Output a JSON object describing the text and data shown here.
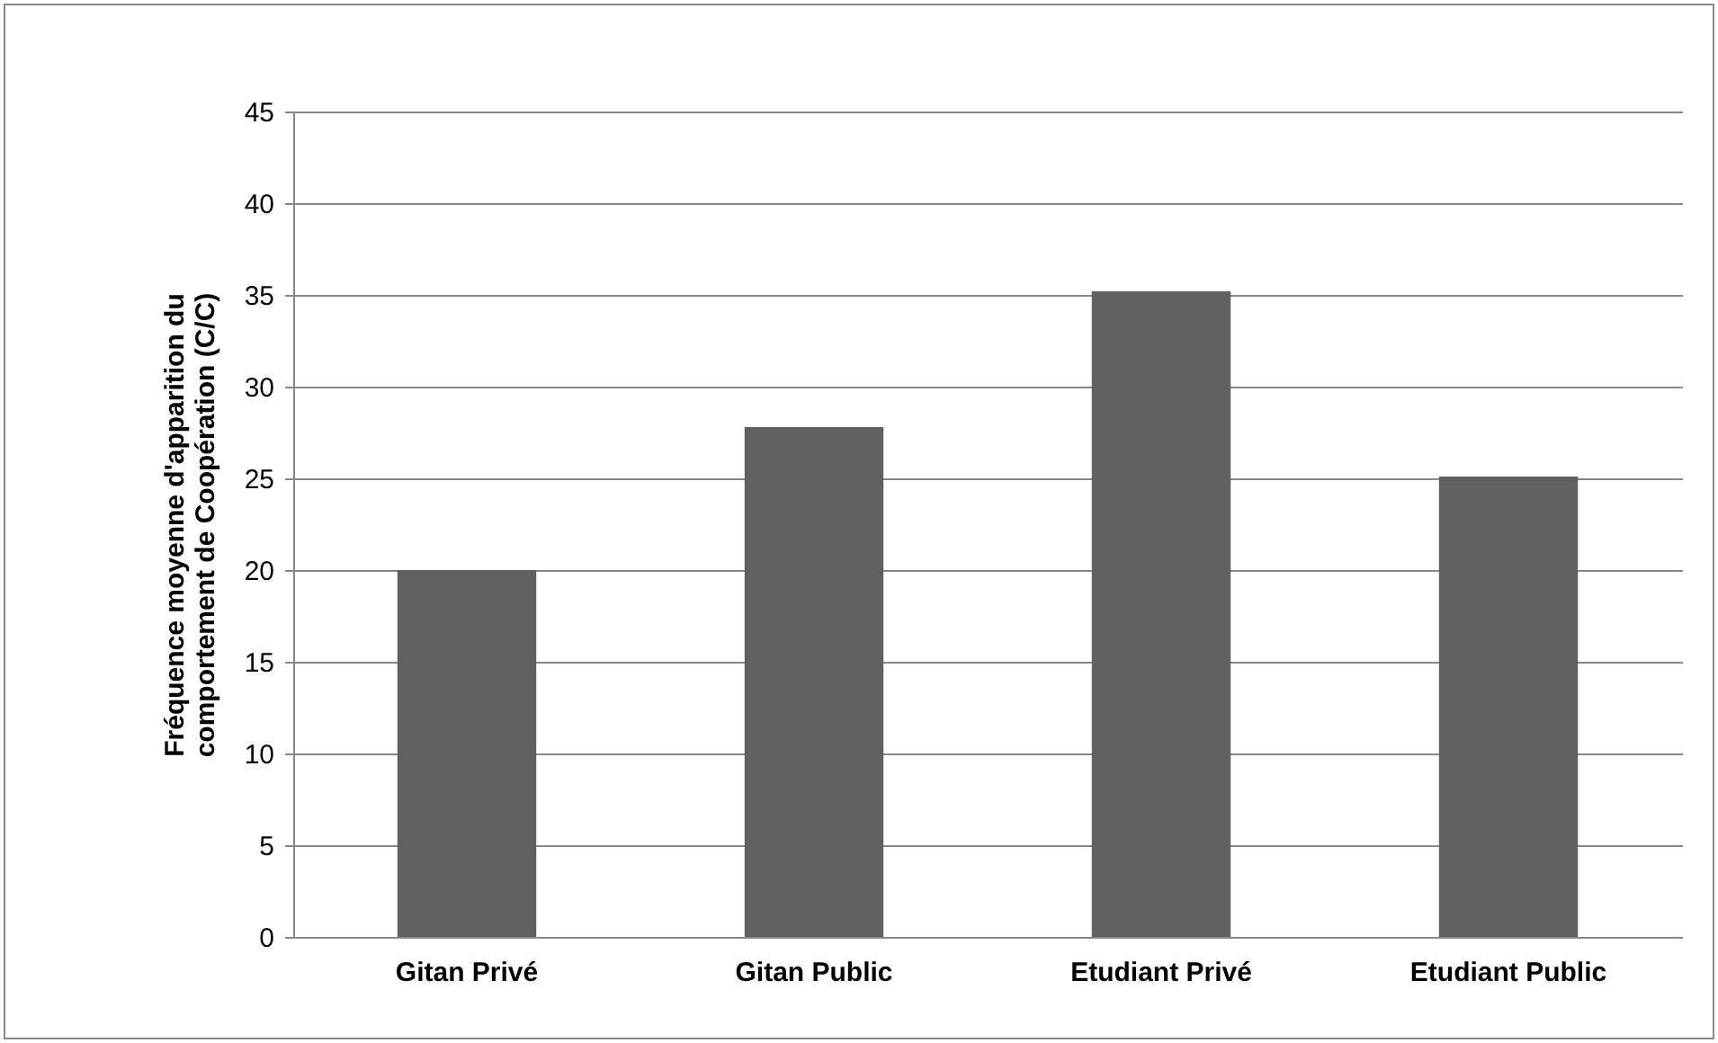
{
  "chart_data": {
    "type": "bar",
    "ylabel": "Fréquence moyenne d'apparition du comportement de Coopération (C/C)",
    "categories": [
      "Gitan Privé",
      "Gitan Public",
      "Etudiant Privé",
      "Etudiant Public"
    ],
    "values": [
      20,
      27.8,
      35.2,
      25.1
    ],
    "color": "#606060",
    "ylim": [
      0,
      45
    ],
    "yticks": [
      0,
      5,
      10,
      15,
      20,
      25,
      30,
      35,
      40,
      45
    ],
    "grid": "y"
  }
}
